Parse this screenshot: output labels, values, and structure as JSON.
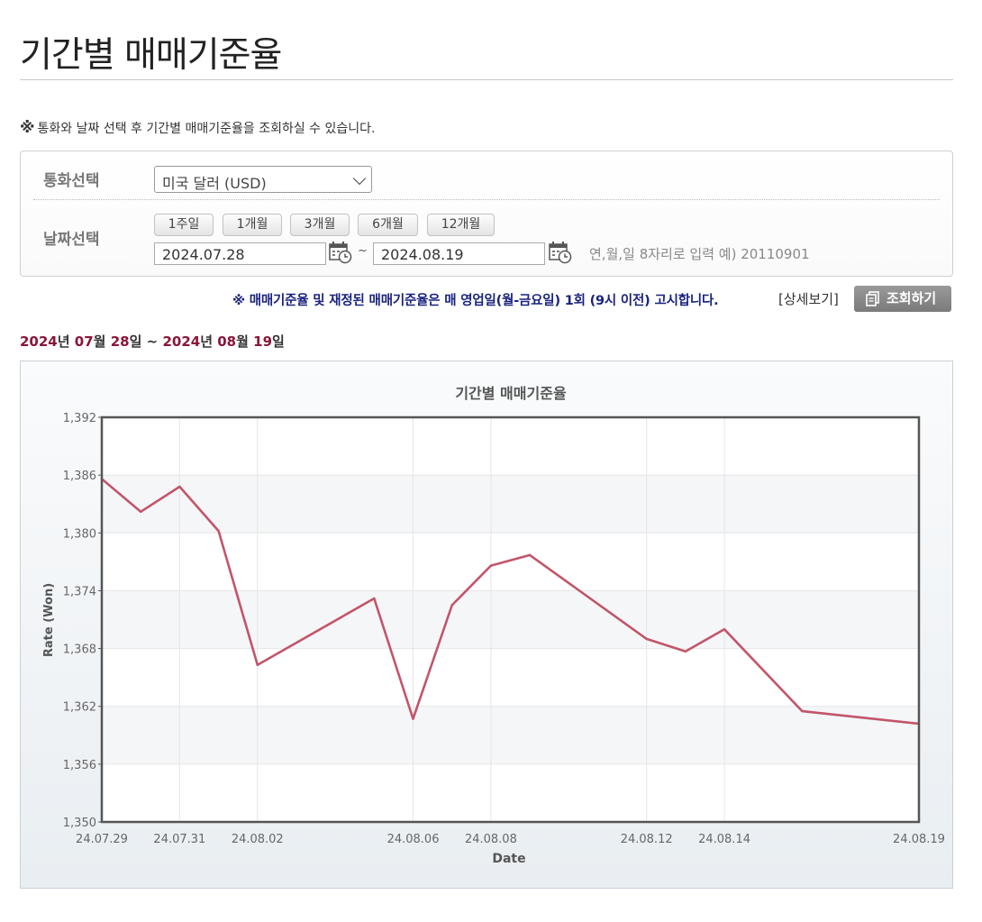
{
  "page": {
    "title": "기간별 매매기준율",
    "notice": "통화와 날짜 선택 후 기간별 매매기준율을 조회하실 수 있습니다.",
    "notice_mark": "※"
  },
  "search": {
    "currency_label": "통화선택",
    "currency_value": "미국 달러 (USD)",
    "date_label": "날짜선택",
    "period_buttons": [
      "1주일",
      "1개월",
      "3개월",
      "6개월",
      "12개월"
    ],
    "start_date": "2024.07.28",
    "end_date": "2024.08.19",
    "tilde": "~",
    "date_hint": "연,월,일 8자리로 입력 예) 20110901"
  },
  "actions": {
    "publish_note": "※ 매매기준율 및 재정된 매매기준율은 매 영업일(월-금요일) 1회 (9시 이전) 고시합니다.",
    "detail_link": "[상세보기]",
    "query_button": "조회하기"
  },
  "range": {
    "start_year": "2024",
    "start_month": "07",
    "start_day": "28",
    "end_year": "2024",
    "end_month": "08",
    "end_day": "19",
    "year_unit": "년",
    "month_unit": "월",
    "day_unit": "일",
    "sep": "~"
  },
  "colors": {
    "line": "#c2556a",
    "range_num": "#8b1538",
    "note": "#1a237e"
  },
  "chart_data": {
    "type": "line",
    "title": "기간별 매매기준율",
    "xlabel": "Date",
    "ylabel": "Rate (Won)",
    "ylim": [
      1350,
      1392
    ],
    "yticks": [
      1350,
      1356,
      1362,
      1368,
      1374,
      1380,
      1386,
      1392
    ],
    "ytick_labels": [
      "1,350",
      "1,356",
      "1,362",
      "1,368",
      "1,374",
      "1,380",
      "1,386",
      "1,392"
    ],
    "xticks": [
      "24.07.29",
      "24.07.31",
      "24.08.02",
      "24.08.06",
      "24.08.08",
      "24.08.12",
      "24.08.14",
      "24.08.19"
    ],
    "grid": true,
    "legend": "none",
    "series": [
      {
        "x": [
          "24.07.29",
          "24.07.30",
          "24.07.31",
          "24.08.01",
          "24.08.02",
          "24.08.05",
          "24.08.06",
          "24.08.07",
          "24.08.08",
          "24.08.09",
          "24.08.12",
          "24.08.13",
          "24.08.14",
          "24.08.16",
          "24.08.19"
        ],
        "values": [
          1385.6,
          1382.2,
          1384.8,
          1380.2,
          1366.3,
          1373.2,
          1360.7,
          1372.5,
          1376.6,
          1377.7,
          1369.0,
          1367.7,
          1370.0,
          1361.5,
          1360.2
        ]
      }
    ]
  }
}
